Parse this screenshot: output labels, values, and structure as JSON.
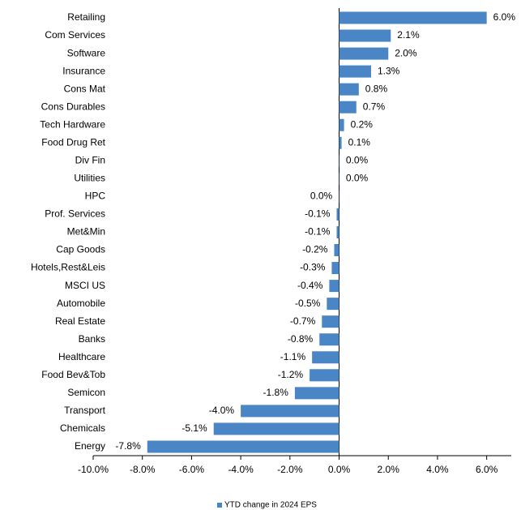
{
  "chart_data": {
    "type": "bar",
    "orientation": "horizontal",
    "categories": [
      "Retailing",
      "Com Services",
      "Software",
      "Insurance",
      "Cons Mat",
      "Cons Durables",
      "Tech Hardware",
      "Food Drug Ret",
      "Div Fin",
      "Utilities",
      "HPC",
      "Prof. Services",
      "Met&Min",
      "Cap Goods",
      "Hotels,Rest&Leis",
      "MSCI US",
      "Automobile",
      "Real Estate",
      "Banks",
      "Healthcare",
      "Food Bev&Tob",
      "Semicon",
      "Transport",
      "Chemicals",
      "Energy"
    ],
    "series": [
      {
        "name": "YTD change in 2024 EPS",
        "color": "#4a86c5",
        "values": [
          6.0,
          2.1,
          2.0,
          1.3,
          0.8,
          0.7,
          0.2,
          0.1,
          0.01,
          0.01,
          -0.01,
          -0.1,
          -0.1,
          -0.2,
          -0.3,
          -0.4,
          -0.5,
          -0.7,
          -0.8,
          -1.1,
          -1.2,
          -1.8,
          -4.0,
          -5.1,
          -7.8
        ],
        "value_labels": [
          "6.0%",
          "2.1%",
          "2.0%",
          "1.3%",
          "0.8%",
          "0.7%",
          "0.2%",
          "0.1%",
          "0.0%",
          "0.0%",
          "0.0%",
          "-0.1%",
          "-0.1%",
          "-0.2%",
          "-0.3%",
          "-0.4%",
          "-0.5%",
          "-0.7%",
          "-0.8%",
          "-1.1%",
          "-1.2%",
          "-1.8%",
          "-4.0%",
          "-5.1%",
          "-7.8%"
        ]
      }
    ],
    "xlim": [
      -10,
      7
    ],
    "xticks": [
      {
        "value": -10,
        "label": "-10.0%"
      },
      {
        "value": -8,
        "label": "-8.0%"
      },
      {
        "value": -6,
        "label": "-6.0%"
      },
      {
        "value": -4,
        "label": "-4.0%"
      },
      {
        "value": -2,
        "label": "-2.0%"
      },
      {
        "value": 0,
        "label": "0.0%"
      },
      {
        "value": 2,
        "label": "2.0%"
      },
      {
        "value": 4,
        "label": "4.0%"
      },
      {
        "value": 6,
        "label": "6.0%"
      }
    ],
    "legend": "bottom"
  }
}
